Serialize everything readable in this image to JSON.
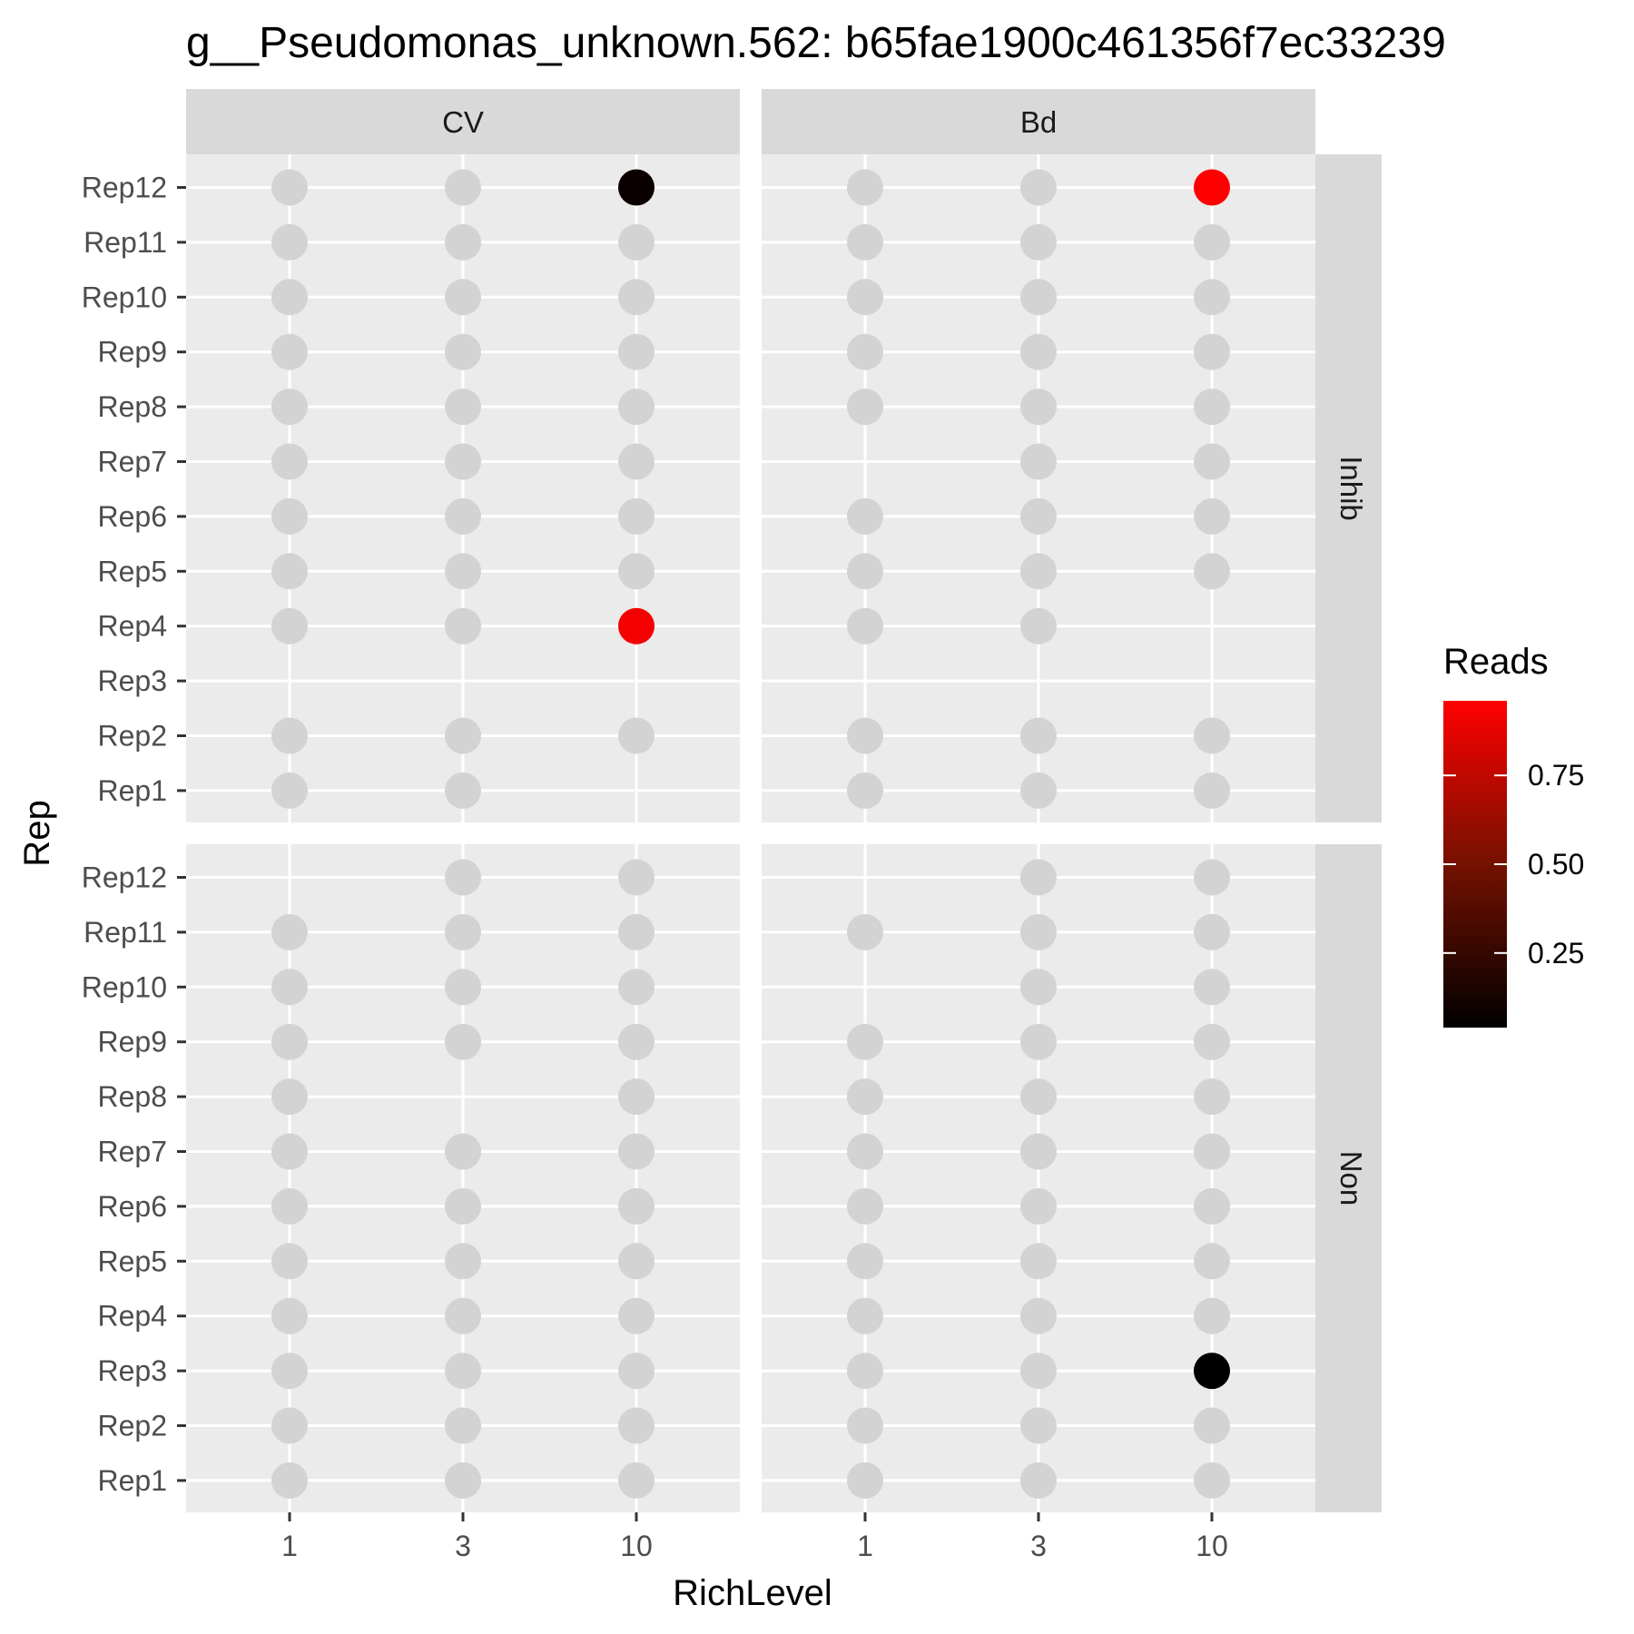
{
  "chart_data": {
    "type": "scatter",
    "title": "g__Pseudomonas_unknown.562: b65fae1900c461356f7ec33239",
    "xlabel": "RichLevel",
    "ylabel": "Rep",
    "x_categories": [
      "1",
      "3",
      "10"
    ],
    "y_categories": [
      "Rep1",
      "Rep2",
      "Rep3",
      "Rep4",
      "Rep5",
      "Rep6",
      "Rep7",
      "Rep8",
      "Rep9",
      "Rep10",
      "Rep11",
      "Rep12"
    ],
    "facet_columns": [
      "CV",
      "Bd"
    ],
    "facet_rows": [
      "Inhib",
      "Non"
    ],
    "legend": {
      "title": "Reads",
      "breaks": [
        0.25,
        0.5,
        0.75
      ],
      "labels": [
        "0.25",
        "0.50",
        "0.75"
      ],
      "range": [
        0.04,
        0.96
      ],
      "low_color": "#000000",
      "high_color": "#ff0000",
      "placement": "right"
    },
    "na_color": "#d3d3d3",
    "panels": [
      {
        "column": "CV",
        "row": "Inhib",
        "points": [
          {
            "x": "1",
            "y": "Rep12",
            "reads": null
          },
          {
            "x": "3",
            "y": "Rep12",
            "reads": null
          },
          {
            "x": "10",
            "y": "Rep12",
            "reads": 0.08
          },
          {
            "x": "1",
            "y": "Rep11",
            "reads": null
          },
          {
            "x": "3",
            "y": "Rep11",
            "reads": null
          },
          {
            "x": "10",
            "y": "Rep11",
            "reads": null
          },
          {
            "x": "1",
            "y": "Rep10",
            "reads": null
          },
          {
            "x": "3",
            "y": "Rep10",
            "reads": null
          },
          {
            "x": "10",
            "y": "Rep10",
            "reads": null
          },
          {
            "x": "1",
            "y": "Rep9",
            "reads": null
          },
          {
            "x": "3",
            "y": "Rep9",
            "reads": null
          },
          {
            "x": "10",
            "y": "Rep9",
            "reads": null
          },
          {
            "x": "1",
            "y": "Rep8",
            "reads": null
          },
          {
            "x": "3",
            "y": "Rep8",
            "reads": null
          },
          {
            "x": "10",
            "y": "Rep8",
            "reads": null
          },
          {
            "x": "1",
            "y": "Rep7",
            "reads": null
          },
          {
            "x": "3",
            "y": "Rep7",
            "reads": null
          },
          {
            "x": "10",
            "y": "Rep7",
            "reads": null
          },
          {
            "x": "1",
            "y": "Rep6",
            "reads": null
          },
          {
            "x": "3",
            "y": "Rep6",
            "reads": null
          },
          {
            "x": "10",
            "y": "Rep6",
            "reads": null
          },
          {
            "x": "1",
            "y": "Rep5",
            "reads": null
          },
          {
            "x": "3",
            "y": "Rep5",
            "reads": null
          },
          {
            "x": "10",
            "y": "Rep5",
            "reads": null
          },
          {
            "x": "1",
            "y": "Rep4",
            "reads": null
          },
          {
            "x": "3",
            "y": "Rep4",
            "reads": null
          },
          {
            "x": "10",
            "y": "Rep4",
            "reads": 0.92
          },
          {
            "x": "1",
            "y": "Rep2",
            "reads": null
          },
          {
            "x": "3",
            "y": "Rep2",
            "reads": null
          },
          {
            "x": "10",
            "y": "Rep2",
            "reads": null
          },
          {
            "x": "1",
            "y": "Rep1",
            "reads": null
          },
          {
            "x": "3",
            "y": "Rep1",
            "reads": null
          }
        ]
      },
      {
        "column": "Bd",
        "row": "Inhib",
        "points": [
          {
            "x": "1",
            "y": "Rep12",
            "reads": null
          },
          {
            "x": "3",
            "y": "Rep12",
            "reads": null
          },
          {
            "x": "10",
            "y": "Rep12",
            "reads": 0.96
          },
          {
            "x": "1",
            "y": "Rep11",
            "reads": null
          },
          {
            "x": "3",
            "y": "Rep11",
            "reads": null
          },
          {
            "x": "10",
            "y": "Rep11",
            "reads": null
          },
          {
            "x": "1",
            "y": "Rep10",
            "reads": null
          },
          {
            "x": "3",
            "y": "Rep10",
            "reads": null
          },
          {
            "x": "10",
            "y": "Rep10",
            "reads": null
          },
          {
            "x": "1",
            "y": "Rep9",
            "reads": null
          },
          {
            "x": "3",
            "y": "Rep9",
            "reads": null
          },
          {
            "x": "10",
            "y": "Rep9",
            "reads": null
          },
          {
            "x": "1",
            "y": "Rep8",
            "reads": null
          },
          {
            "x": "3",
            "y": "Rep8",
            "reads": null
          },
          {
            "x": "10",
            "y": "Rep8",
            "reads": null
          },
          {
            "x": "3",
            "y": "Rep7",
            "reads": null
          },
          {
            "x": "10",
            "y": "Rep7",
            "reads": null
          },
          {
            "x": "1",
            "y": "Rep6",
            "reads": null
          },
          {
            "x": "3",
            "y": "Rep6",
            "reads": null
          },
          {
            "x": "10",
            "y": "Rep6",
            "reads": null
          },
          {
            "x": "1",
            "y": "Rep5",
            "reads": null
          },
          {
            "x": "3",
            "y": "Rep5",
            "reads": null
          },
          {
            "x": "10",
            "y": "Rep5",
            "reads": null
          },
          {
            "x": "1",
            "y": "Rep4",
            "reads": null
          },
          {
            "x": "3",
            "y": "Rep4",
            "reads": null
          },
          {
            "x": "1",
            "y": "Rep2",
            "reads": null
          },
          {
            "x": "3",
            "y": "Rep2",
            "reads": null
          },
          {
            "x": "10",
            "y": "Rep2",
            "reads": null
          },
          {
            "x": "1",
            "y": "Rep1",
            "reads": null
          },
          {
            "x": "3",
            "y": "Rep1",
            "reads": null
          },
          {
            "x": "10",
            "y": "Rep1",
            "reads": null
          }
        ]
      },
      {
        "column": "CV",
        "row": "Non",
        "points": [
          {
            "x": "3",
            "y": "Rep12",
            "reads": null
          },
          {
            "x": "10",
            "y": "Rep12",
            "reads": null
          },
          {
            "x": "1",
            "y": "Rep11",
            "reads": null
          },
          {
            "x": "3",
            "y": "Rep11",
            "reads": null
          },
          {
            "x": "10",
            "y": "Rep11",
            "reads": null
          },
          {
            "x": "1",
            "y": "Rep10",
            "reads": null
          },
          {
            "x": "3",
            "y": "Rep10",
            "reads": null
          },
          {
            "x": "10",
            "y": "Rep10",
            "reads": null
          },
          {
            "x": "1",
            "y": "Rep9",
            "reads": null
          },
          {
            "x": "3",
            "y": "Rep9",
            "reads": null
          },
          {
            "x": "10",
            "y": "Rep9",
            "reads": null
          },
          {
            "x": "1",
            "y": "Rep8",
            "reads": null
          },
          {
            "x": "10",
            "y": "Rep8",
            "reads": null
          },
          {
            "x": "1",
            "y": "Rep7",
            "reads": null
          },
          {
            "x": "3",
            "y": "Rep7",
            "reads": null
          },
          {
            "x": "10",
            "y": "Rep7",
            "reads": null
          },
          {
            "x": "1",
            "y": "Rep6",
            "reads": null
          },
          {
            "x": "3",
            "y": "Rep6",
            "reads": null
          },
          {
            "x": "10",
            "y": "Rep6",
            "reads": null
          },
          {
            "x": "1",
            "y": "Rep5",
            "reads": null
          },
          {
            "x": "3",
            "y": "Rep5",
            "reads": null
          },
          {
            "x": "10",
            "y": "Rep5",
            "reads": null
          },
          {
            "x": "1",
            "y": "Rep4",
            "reads": null
          },
          {
            "x": "3",
            "y": "Rep4",
            "reads": null
          },
          {
            "x": "10",
            "y": "Rep4",
            "reads": null
          },
          {
            "x": "1",
            "y": "Rep3",
            "reads": null
          },
          {
            "x": "3",
            "y": "Rep3",
            "reads": null
          },
          {
            "x": "10",
            "y": "Rep3",
            "reads": null
          },
          {
            "x": "1",
            "y": "Rep2",
            "reads": null
          },
          {
            "x": "3",
            "y": "Rep2",
            "reads": null
          },
          {
            "x": "10",
            "y": "Rep2",
            "reads": null
          },
          {
            "x": "1",
            "y": "Rep1",
            "reads": null
          },
          {
            "x": "3",
            "y": "Rep1",
            "reads": null
          },
          {
            "x": "10",
            "y": "Rep1",
            "reads": null
          }
        ]
      },
      {
        "column": "Bd",
        "row": "Non",
        "points": [
          {
            "x": "3",
            "y": "Rep12",
            "reads": null
          },
          {
            "x": "10",
            "y": "Rep12",
            "reads": null
          },
          {
            "x": "1",
            "y": "Rep11",
            "reads": null
          },
          {
            "x": "3",
            "y": "Rep11",
            "reads": null
          },
          {
            "x": "10",
            "y": "Rep11",
            "reads": null
          },
          {
            "x": "3",
            "y": "Rep10",
            "reads": null
          },
          {
            "x": "10",
            "y": "Rep10",
            "reads": null
          },
          {
            "x": "1",
            "y": "Rep9",
            "reads": null
          },
          {
            "x": "3",
            "y": "Rep9",
            "reads": null
          },
          {
            "x": "10",
            "y": "Rep9",
            "reads": null
          },
          {
            "x": "1",
            "y": "Rep8",
            "reads": null
          },
          {
            "x": "3",
            "y": "Rep8",
            "reads": null
          },
          {
            "x": "10",
            "y": "Rep8",
            "reads": null
          },
          {
            "x": "1",
            "y": "Rep7",
            "reads": null
          },
          {
            "x": "3",
            "y": "Rep7",
            "reads": null
          },
          {
            "x": "10",
            "y": "Rep7",
            "reads": null
          },
          {
            "x": "1",
            "y": "Rep6",
            "reads": null
          },
          {
            "x": "3",
            "y": "Rep6",
            "reads": null
          },
          {
            "x": "10",
            "y": "Rep6",
            "reads": null
          },
          {
            "x": "1",
            "y": "Rep5",
            "reads": null
          },
          {
            "x": "3",
            "y": "Rep5",
            "reads": null
          },
          {
            "x": "10",
            "y": "Rep5",
            "reads": null
          },
          {
            "x": "1",
            "y": "Rep4",
            "reads": null
          },
          {
            "x": "3",
            "y": "Rep4",
            "reads": null
          },
          {
            "x": "10",
            "y": "Rep4",
            "reads": null
          },
          {
            "x": "1",
            "y": "Rep3",
            "reads": null
          },
          {
            "x": "3",
            "y": "Rep3",
            "reads": null
          },
          {
            "x": "10",
            "y": "Rep3",
            "reads": 0.04
          },
          {
            "x": "1",
            "y": "Rep2",
            "reads": null
          },
          {
            "x": "3",
            "y": "Rep2",
            "reads": null
          },
          {
            "x": "10",
            "y": "Rep2",
            "reads": null
          },
          {
            "x": "1",
            "y": "Rep1",
            "reads": null
          },
          {
            "x": "3",
            "y": "Rep1",
            "reads": null
          },
          {
            "x": "10",
            "y": "Rep1",
            "reads": null
          }
        ]
      }
    ]
  }
}
